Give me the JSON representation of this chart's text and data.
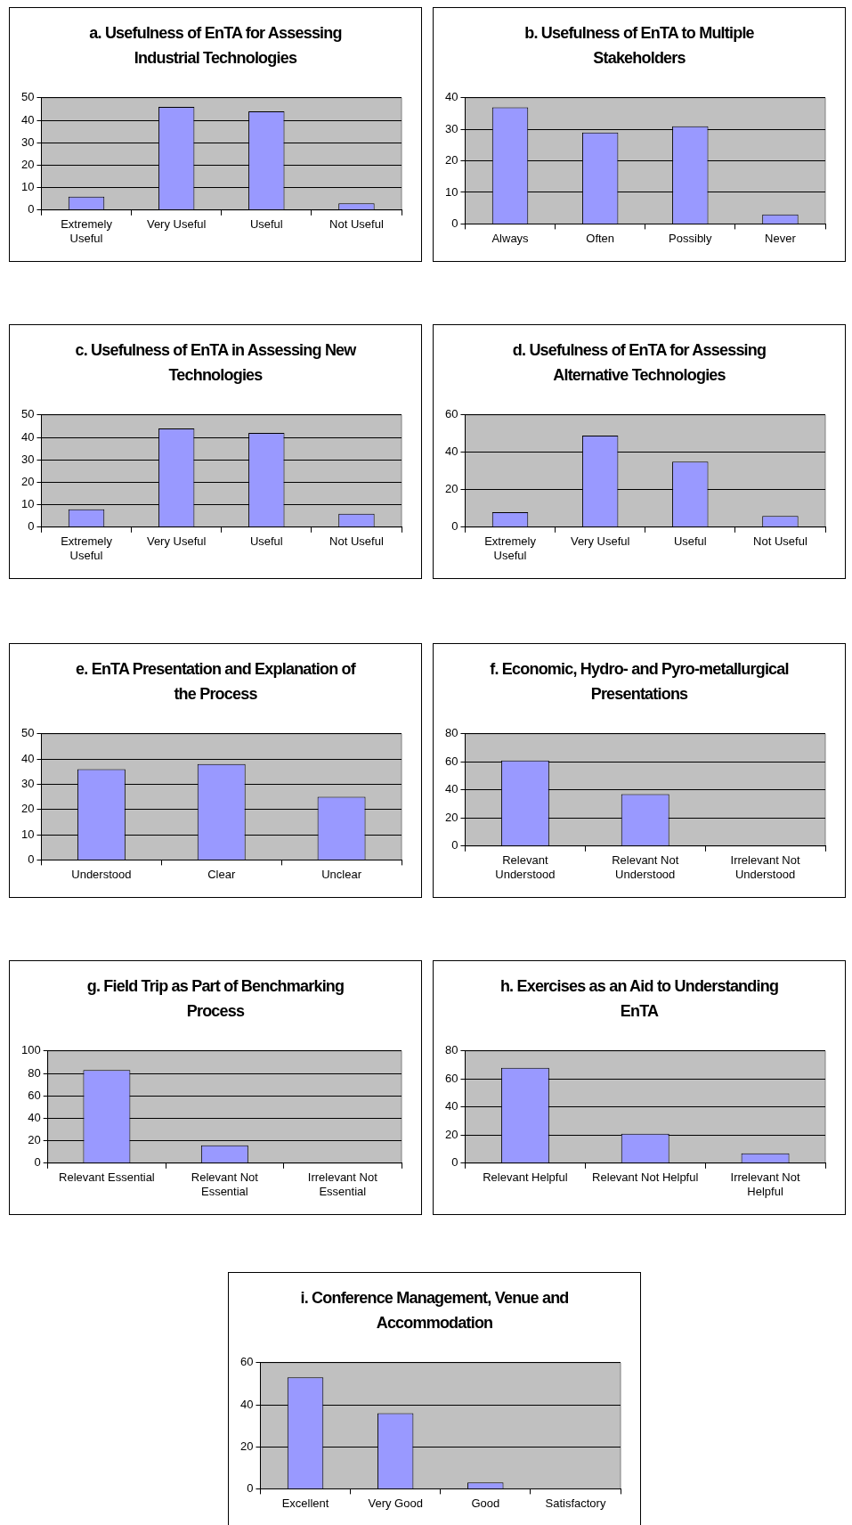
{
  "chart_data": [
    {
      "type": "bar",
      "title": "a. Usefulness of EnTA for Assessing Industrial Technologies",
      "categories": [
        "Extremely Useful",
        "Very Useful",
        "Useful",
        "Not Useful"
      ],
      "values": [
        6,
        46,
        44,
        3
      ],
      "color": "#9999ff",
      "ylim": [
        0,
        50
      ],
      "yticks": [
        0,
        10,
        20,
        30,
        40,
        50
      ],
      "grid": "y"
    },
    {
      "type": "bar",
      "title": "b. Usefulness of EnTA to Multiple Stakeholders",
      "categories": [
        "Always",
        "Often",
        "Possibly",
        "Never"
      ],
      "values": [
        37,
        29,
        31,
        3
      ],
      "color": "#9999ff",
      "ylim": [
        0,
        40
      ],
      "yticks": [
        0,
        10,
        20,
        30,
        40
      ],
      "grid": "y"
    },
    {
      "type": "bar",
      "title": "c.  Usefulness of EnTA in Assessing New Technologies",
      "categories": [
        "Extremely Useful",
        "Very Useful",
        "Useful",
        "Not Useful"
      ],
      "values": [
        8,
        44,
        42,
        6
      ],
      "color": "#9999ff",
      "ylim": [
        0,
        50
      ],
      "yticks": [
        0,
        10,
        20,
        30,
        40,
        50
      ],
      "grid": "y"
    },
    {
      "type": "bar",
      "title": "d.  Usefulness of EnTA for Assessing Alternative Technologies",
      "categories": [
        "Extremely Useful",
        "Very Useful",
        "Useful",
        "Not Useful"
      ],
      "values": [
        8,
        49,
        35,
        6
      ],
      "color": "#9999ff",
      "ylim": [
        0,
        60
      ],
      "yticks": [
        0,
        20,
        40,
        60
      ],
      "grid": "y"
    },
    {
      "type": "bar",
      "title": "e.  EnTA Presentation and Explanation of the Process",
      "categories": [
        "Understood",
        "Clear",
        "Unclear"
      ],
      "values": [
        36,
        38,
        25
      ],
      "color": "#9999ff",
      "ylim": [
        0,
        50
      ],
      "yticks": [
        0,
        10,
        20,
        30,
        40,
        50
      ],
      "grid": "y"
    },
    {
      "type": "bar",
      "title": "f. Economic, Hydro- and Pyro-metallurgical Presentations",
      "categories": [
        "Relevant Understood",
        "Relevant Not Understood",
        "Irrelevant Not Understood"
      ],
      "values": [
        61,
        37,
        0
      ],
      "color": "#9999ff",
      "ylim": [
        0,
        80
      ],
      "yticks": [
        0,
        20,
        40,
        60,
        80
      ],
      "grid": "y"
    },
    {
      "type": "bar",
      "title": "g.  Field Trip as Part of Benchmarking Process",
      "categories": [
        "Relevant Essential",
        "Relevant Not Essential",
        "Irrelevant Not Essential"
      ],
      "values": [
        83,
        16,
        0
      ],
      "color": "#9999ff",
      "ylim": [
        0,
        100
      ],
      "yticks": [
        0,
        20,
        40,
        60,
        80,
        100
      ],
      "grid": "y"
    },
    {
      "type": "bar",
      "title": "h.  Exercises as an Aid to Understanding EnTA",
      "categories": [
        "Relevant Helpful",
        "Relevant Not Helpful",
        "Irrelevant Not Helpful"
      ],
      "values": [
        68,
        21,
        7
      ],
      "color": "#9999ff",
      "ylim": [
        0,
        80
      ],
      "yticks": [
        0,
        20,
        40,
        60,
        80
      ],
      "grid": "y"
    },
    {
      "type": "bar",
      "title": "i. Conference Management, Venue and Accommodation",
      "categories": [
        "Excellent",
        "Very Good",
        "Good",
        "Satisfactory"
      ],
      "values": [
        53,
        36,
        3,
        0
      ],
      "color": "#9999ff",
      "ylim": [
        0,
        60
      ],
      "yticks": [
        0,
        20,
        40,
        60
      ],
      "grid": "y"
    }
  ]
}
